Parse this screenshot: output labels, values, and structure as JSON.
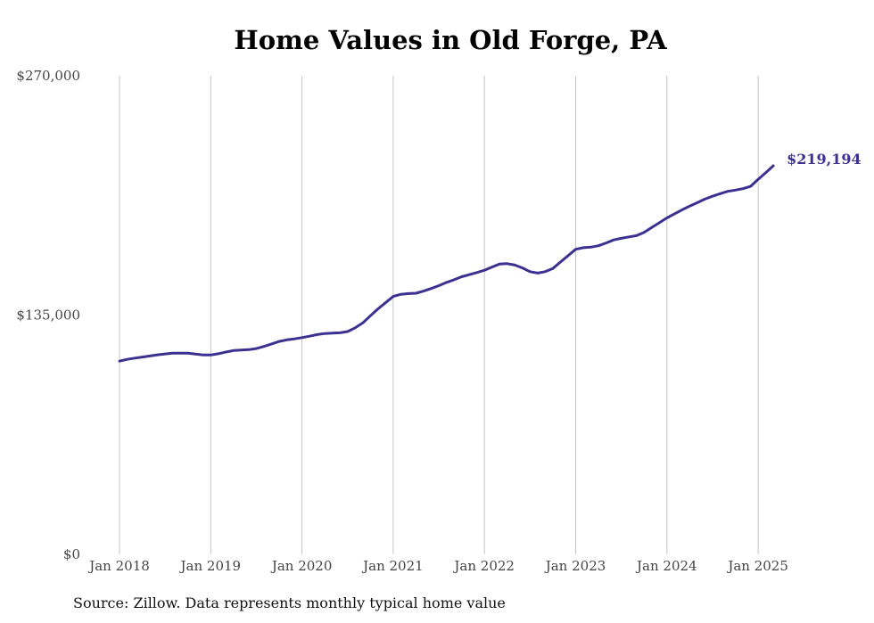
{
  "chart_data": {
    "type": "line",
    "title": "Home Values in Old Forge, PA",
    "source": "Source: Zillow. Data represents monthly typical home value",
    "ylim": [
      0,
      270000
    ],
    "y_ticks": [
      "$270,000",
      "$135,000",
      "$0"
    ],
    "x_ticks": [
      "Jan 2018",
      "Jan 2019",
      "Jan 2020",
      "Jan 2021",
      "Jan 2022",
      "Jan 2023",
      "Jan 2024",
      "Jan 2025"
    ],
    "grid": "vertical",
    "line_color": "#3b3191",
    "last_value_label": "$219,194",
    "series": [
      {
        "values": [
          [
            "2018-01",
            109000
          ],
          [
            "2018-02",
            110000
          ],
          [
            "2018-03",
            110700
          ],
          [
            "2018-04",
            111300
          ],
          [
            "2018-05",
            111900
          ],
          [
            "2018-06",
            112600
          ],
          [
            "2018-07",
            113100
          ],
          [
            "2018-08",
            113500
          ],
          [
            "2018-09",
            113500
          ],
          [
            "2018-10",
            113500
          ],
          [
            "2018-11",
            113000
          ],
          [
            "2018-12",
            112500
          ],
          [
            "2019-01",
            112500
          ],
          [
            "2019-02",
            113200
          ],
          [
            "2019-03",
            114200
          ],
          [
            "2019-04",
            115000
          ],
          [
            "2019-05",
            115300
          ],
          [
            "2019-06",
            115500
          ],
          [
            "2019-07",
            116100
          ],
          [
            "2019-08",
            117300
          ],
          [
            "2019-09",
            118700
          ],
          [
            "2019-10",
            120100
          ],
          [
            "2019-11",
            121000
          ],
          [
            "2019-12",
            121600
          ],
          [
            "2020-01",
            122300
          ],
          [
            "2020-02",
            123100
          ],
          [
            "2020-03",
            124000
          ],
          [
            "2020-04",
            124600
          ],
          [
            "2020-05",
            124800
          ],
          [
            "2020-06",
            125000
          ],
          [
            "2020-07",
            125700
          ],
          [
            "2020-08",
            127800
          ],
          [
            "2020-09",
            130600
          ],
          [
            "2020-10",
            134600
          ],
          [
            "2020-11",
            138500
          ],
          [
            "2020-12",
            142000
          ],
          [
            "2021-01",
            145500
          ],
          [
            "2021-02",
            146700
          ],
          [
            "2021-03",
            147100
          ],
          [
            "2021-04",
            147300
          ],
          [
            "2021-05",
            148500
          ],
          [
            "2021-06",
            150000
          ],
          [
            "2021-07",
            151600
          ],
          [
            "2021-08",
            153400
          ],
          [
            "2021-09",
            154900
          ],
          [
            "2021-10",
            156600
          ],
          [
            "2021-11",
            157800
          ],
          [
            "2021-12",
            159000
          ],
          [
            "2022-01",
            160300
          ],
          [
            "2022-02",
            162100
          ],
          [
            "2022-03",
            163800
          ],
          [
            "2022-04",
            164000
          ],
          [
            "2022-05",
            163200
          ],
          [
            "2022-06",
            161600
          ],
          [
            "2022-07",
            159500
          ],
          [
            "2022-08",
            158700
          ],
          [
            "2022-09",
            159500
          ],
          [
            "2022-10",
            161300
          ],
          [
            "2022-11",
            164900
          ],
          [
            "2022-12",
            168500
          ],
          [
            "2023-01",
            172100
          ],
          [
            "2023-02",
            173000
          ],
          [
            "2023-03",
            173300
          ],
          [
            "2023-04",
            174100
          ],
          [
            "2023-05",
            175700
          ],
          [
            "2023-06",
            177400
          ],
          [
            "2023-07",
            178300
          ],
          [
            "2023-08",
            179100
          ],
          [
            "2023-09",
            179800
          ],
          [
            "2023-10",
            181600
          ],
          [
            "2023-11",
            184400
          ],
          [
            "2023-12",
            187100
          ],
          [
            "2024-01",
            189800
          ],
          [
            "2024-02",
            192100
          ],
          [
            "2024-03",
            194400
          ],
          [
            "2024-04",
            196500
          ],
          [
            "2024-05",
            198400
          ],
          [
            "2024-06",
            200400
          ],
          [
            "2024-07",
            202000
          ],
          [
            "2024-08",
            203500
          ],
          [
            "2024-09",
            204800
          ],
          [
            "2024-10",
            205500
          ],
          [
            "2024-11",
            206300
          ],
          [
            "2024-12",
            207600
          ],
          [
            "2025-01",
            211600
          ],
          [
            "2025-02",
            215300
          ],
          [
            "2025-03",
            219194
          ]
        ]
      }
    ]
  }
}
